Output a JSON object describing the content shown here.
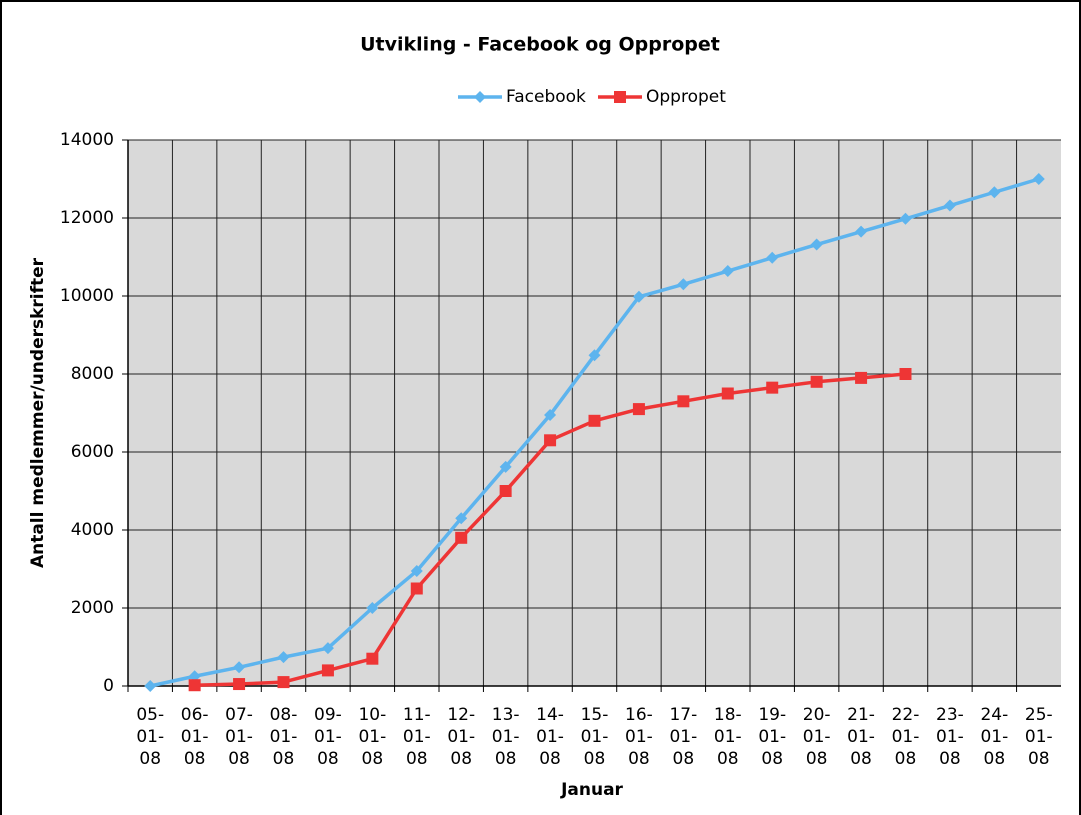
{
  "chart_data": {
    "type": "line",
    "title": "Utvikling - Facebook og Oppropet",
    "xlabel": "Januar",
    "ylabel": "Antall medlemmer/underskrifter",
    "categories": [
      "05-01-08",
      "06-01-08",
      "07-01-08",
      "08-01-08",
      "09-01-08",
      "10-01-08",
      "11-01-08",
      "12-01-08",
      "13-01-08",
      "14-01-08",
      "15-01-08",
      "16-01-08",
      "17-01-08",
      "18-01-08",
      "19-01-08",
      "20-01-08",
      "21-01-08",
      "22-01-08",
      "23-01-08",
      "24-01-08",
      "25-01-08"
    ],
    "series": [
      {
        "name": "Facebook",
        "color": "#5db4ee",
        "marker": "diamond",
        "values": [
          0,
          250,
          480,
          740,
          970,
          2000,
          2950,
          4300,
          5620,
          6950,
          8480,
          9980,
          10300,
          10640,
          10980,
          11320,
          11650,
          11980,
          12320,
          12660,
          13000
        ]
      },
      {
        "name": "Oppropet",
        "color": "#ee3535",
        "marker": "square",
        "values": [
          null,
          20,
          50,
          100,
          400,
          700,
          2500,
          3800,
          5000,
          6300,
          6800,
          7100,
          7300,
          7500,
          7650,
          7800,
          7900,
          8000,
          null,
          null,
          null
        ]
      }
    ],
    "ylim": [
      0,
      14000
    ],
    "yticks": [
      0,
      2000,
      4000,
      6000,
      8000,
      10000,
      12000,
      14000
    ],
    "grid": true,
    "legend": "top"
  }
}
